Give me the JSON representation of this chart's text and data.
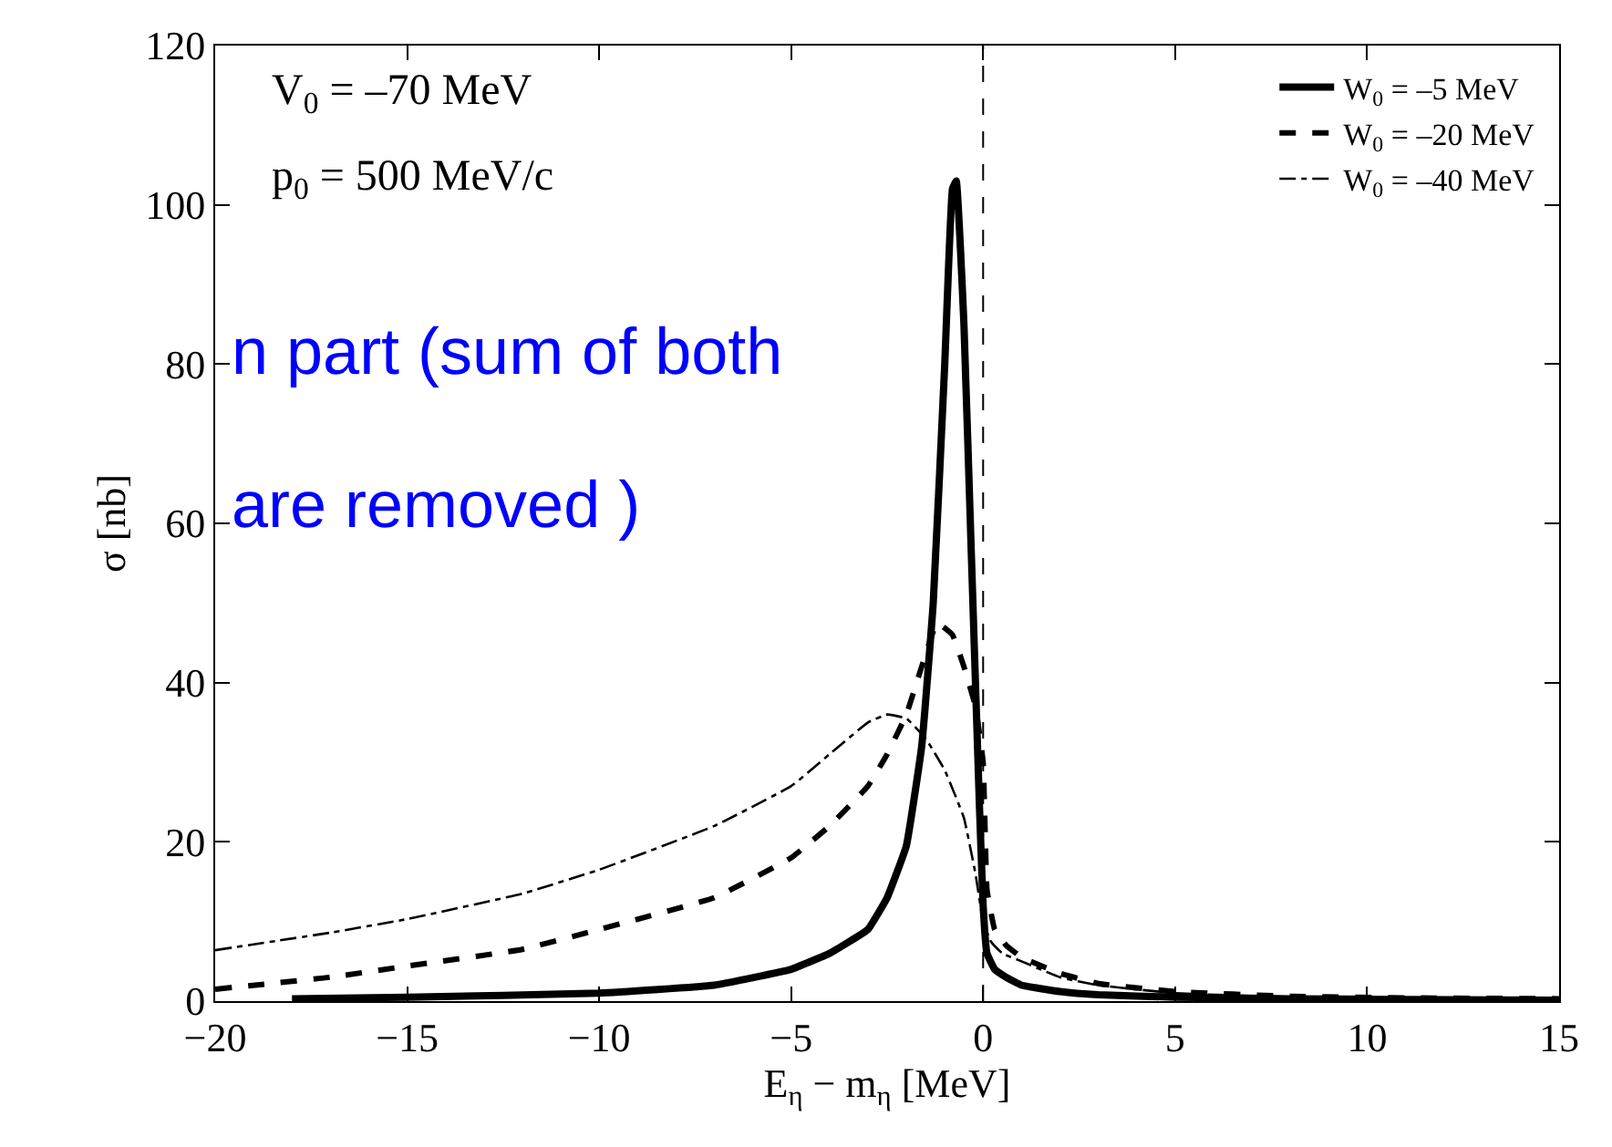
{
  "chart_data": {
    "type": "line",
    "xlabel": "E$_{η}$ − m$_{η}$ [MeV]",
    "ylabel": "σ [nb]",
    "xlim": [
      -20,
      15
    ],
    "xticks": [
      {
        "value": -20,
        "label": "−20"
      },
      {
        "value": -15,
        "label": "−15"
      },
      {
        "value": -10,
        "label": "−10"
      },
      {
        "value": -5,
        "label": "−5"
      },
      0,
      5,
      10,
      15
    ],
    "ylim": [
      0,
      120
    ],
    "yticks": [
      0,
      20,
      40,
      60,
      80,
      100,
      120
    ],
    "grid": false,
    "legend": "top right",
    "marker": "none",
    "ref_lines": [
      {
        "axis": "x",
        "value": 0,
        "color": "#000000",
        "line_style": "dashed"
      }
    ],
    "annotations": [
      "V$_{0}$ = –70 MeV",
      "p$_{0}$ = 500 MeV/c",
      "n part (sum of both",
      "are removed )"
    ],
    "series": [
      {
        "name": "W$_{0}$ = –5 MeV",
        "color": "#000000",
        "line_style": "solid",
        "x": [
          -18,
          -15,
          -10,
          -7,
          -5,
          -4,
          -3,
          -2.5,
          -2,
          -1.6,
          -1.3,
          -1.0,
          -0.8,
          -0.7,
          -0.5,
          -0.3,
          -0.1,
          0,
          0.1,
          0.3,
          0.6,
          1,
          2,
          3,
          5,
          8,
          11,
          15
        ],
        "values": [
          0.3,
          0.5,
          1,
          2,
          4,
          6,
          9,
          13,
          19.5,
          32,
          50,
          80,
          102,
          103,
          85,
          55,
          25,
          12,
          6,
          4,
          3,
          2,
          1.2,
          0.8,
          0.5,
          0.3,
          0.2,
          0.1
        ]
      },
      {
        "name": "W$_{0}$ = –20 MeV",
        "color": "#000000",
        "line_style": "dashed",
        "x": [
          -20,
          -17,
          -15,
          -12,
          -10,
          -7,
          -5,
          -4,
          -3,
          -2.5,
          -2,
          -1.6,
          -1.2,
          -0.8,
          -0.5,
          -0.2,
          0,
          0.1,
          0.3,
          0.6,
          1,
          2,
          3,
          5,
          8,
          11,
          15
        ],
        "values": [
          1.5,
          3,
          4.4,
          6.5,
          9,
          13,
          18,
          22,
          27,
          31,
          36,
          42,
          47.5,
          46,
          42,
          37,
          30,
          14,
          9,
          7,
          5.5,
          3.5,
          2.2,
          1.2,
          0.6,
          0.4,
          0.3
        ]
      },
      {
        "name": "W$_{0}$ = –40 MeV",
        "color": "#000000",
        "line_style": "dashdot",
        "x": [
          -20,
          -17,
          -15,
          -12,
          -10,
          -7,
          -5,
          -4,
          -3,
          -2.5,
          -2,
          -1.5,
          -1,
          -0.5,
          -0.2,
          0,
          0.2,
          0.5,
          1,
          2,
          3,
          5,
          8,
          11,
          15
        ],
        "values": [
          6.4,
          8.6,
          10.3,
          13.5,
          16.5,
          22,
          27,
          31,
          35,
          36,
          35.5,
          33,
          29,
          23,
          16,
          10,
          7.5,
          6,
          5,
          3,
          2,
          1,
          0.5,
          0.3,
          0.2
        ]
      }
    ]
  }
}
